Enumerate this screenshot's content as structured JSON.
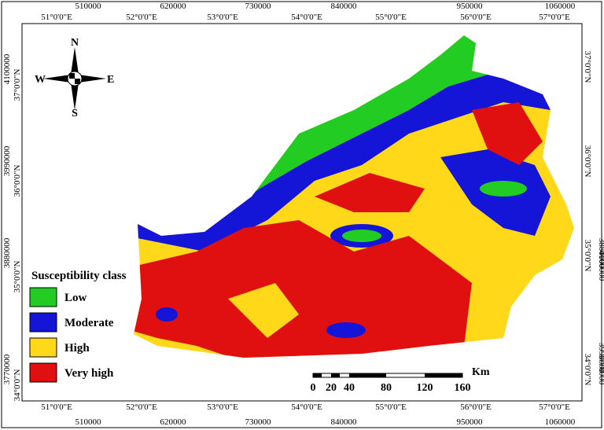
{
  "projected_x": [
    "510000",
    "620000",
    "730000",
    "840000",
    "950000",
    "1060000"
  ],
  "longitude": [
    "51°0'0\"E",
    "52°0'0\"E",
    "53°0'0\"E",
    "54°0'0\"E",
    "55°0'0\"E",
    "56°0'0\"E",
    "57°0'0\"E"
  ],
  "projected_y": [
    "4100000",
    "3990000",
    "3880000",
    "3770000"
  ],
  "latitude": [
    "37°0'0\"N",
    "36°0'0\"N",
    "35°0'0\"N",
    "34°0'0\"N"
  ],
  "compass": {
    "n": "N",
    "s": "S",
    "e": "E",
    "w": "W"
  },
  "legend": {
    "title": "Susceptibility class",
    "items": [
      {
        "label": "Low",
        "color": "#22cc22"
      },
      {
        "label": "Moderate",
        "color": "#1515d8"
      },
      {
        "label": "High",
        "color": "#ffd81a"
      },
      {
        "label": "Very high",
        "color": "#e01010"
      }
    ]
  },
  "scale": {
    "unit": "Km",
    "labels": [
      "0",
      "20",
      "40",
      "80",
      "120",
      "160"
    ]
  }
}
